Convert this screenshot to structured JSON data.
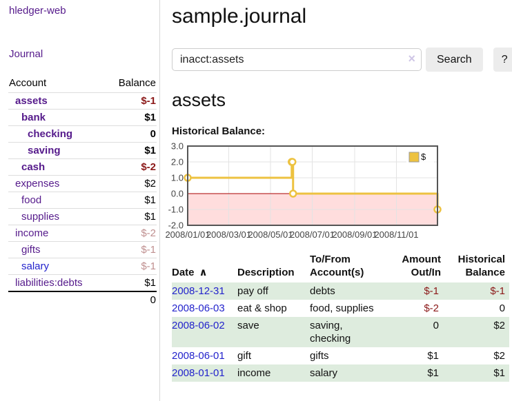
{
  "colors": {
    "link_purple": "#551a8b",
    "link_blue": "#2323cc",
    "negative_strong": "#8b1818",
    "negative_faded": "#bf8f8f",
    "row_green": "#deecde",
    "chart_line": "#edc240",
    "negative_region": "#ffdddd",
    "zero_line": "#aa0000",
    "chart_border": "#545454"
  },
  "sidebar": {
    "brand": "hledger-web",
    "nav": {
      "journal_label": "Journal"
    },
    "accounts": {
      "header": {
        "account": "Account",
        "balance": "Balance"
      },
      "rows": [
        {
          "account": "assets",
          "indent": 1,
          "bold": true,
          "link_tone": "purple",
          "balance": "$-1",
          "balance_tone": "neg"
        },
        {
          "account": "bank",
          "indent": 2,
          "bold": true,
          "link_tone": "purple",
          "balance": "$1",
          "balance_tone": "plain"
        },
        {
          "account": "checking",
          "indent": 3,
          "bold": true,
          "link_tone": "purple",
          "balance": "0",
          "balance_tone": "plain"
        },
        {
          "account": "saving",
          "indent": 3,
          "bold": true,
          "link_tone": "purple",
          "balance": "$1",
          "balance_tone": "plain"
        },
        {
          "account": "cash",
          "indent": 2,
          "bold": true,
          "link_tone": "purple",
          "balance": "$-2",
          "balance_tone": "neg"
        },
        {
          "account": "expenses",
          "indent": 1,
          "bold": false,
          "link_tone": "purple",
          "balance": "$2",
          "balance_tone": "plain"
        },
        {
          "account": "food",
          "indent": 2,
          "bold": false,
          "link_tone": "purple",
          "balance": "$1",
          "balance_tone": "plain"
        },
        {
          "account": "supplies",
          "indent": 2,
          "bold": false,
          "link_tone": "purple",
          "balance": "$1",
          "balance_tone": "plain"
        },
        {
          "account": "income",
          "indent": 1,
          "bold": false,
          "link_tone": "purple",
          "balance": "$-2",
          "balance_tone": "faded"
        },
        {
          "account": "gifts",
          "indent": 2,
          "bold": false,
          "link_tone": "purple",
          "balance": "$-1",
          "balance_tone": "faded"
        },
        {
          "account": "salary",
          "indent": 2,
          "bold": false,
          "link_tone": "blue",
          "balance": "$-1",
          "balance_tone": "faded"
        },
        {
          "account": "liabilities:debts",
          "indent": 1,
          "bold": false,
          "link_tone": "purple",
          "balance": "$1",
          "balance_tone": "plain"
        }
      ],
      "total": "0"
    }
  },
  "main": {
    "title": "sample.journal",
    "search": {
      "value": "inacct:assets",
      "clear_icon": "×",
      "button_label": "Search",
      "help_label": "?"
    },
    "account_heading": "assets",
    "chart_label": "Historical Balance:"
  },
  "chart_data": {
    "type": "line",
    "mode": "steps",
    "title": "Historical Balance:",
    "series": [
      {
        "name": "$",
        "color": "#edc240",
        "points": [
          [
            "2008-01-01",
            1.0
          ],
          [
            "2008-06-01",
            2.0
          ],
          [
            "2008-06-02",
            2.0
          ],
          [
            "2008-06-03",
            0.0
          ],
          [
            "2008-12-31",
            -1.0
          ]
        ]
      }
    ],
    "x_range": [
      "2008-01-01",
      "2008-12-31"
    ],
    "x_ticks": [
      "2008/01/01",
      "2008/03/01",
      "2008/05/01",
      "2008/07/01",
      "2008/09/01",
      "2008/11/01"
    ],
    "y_ticks": [
      3.0,
      2.0,
      1.0,
      0.0,
      -1.0,
      -2.0
    ],
    "ylim": [
      -2,
      3
    ],
    "grid": true,
    "legend": {
      "label": "$",
      "position": "top-right"
    },
    "negative_region_color": "#ffdddd",
    "zero_line_color": "#aa0000"
  },
  "register": {
    "headers": {
      "date": "Date",
      "sort_icon": "∧",
      "description": "Description",
      "tofrom": "To/From Account(s)",
      "amount": "Amount Out/In",
      "balance": "Historical Balance"
    },
    "rows": [
      {
        "date": "2008-12-31",
        "description": "pay off",
        "tofrom": "debts",
        "amount": "$-1",
        "amount_tone": "neg",
        "balance": "$-1",
        "balance_tone": "neg",
        "shade": true
      },
      {
        "date": "2008-06-03",
        "description": "eat & shop",
        "tofrom": "food, supplies",
        "amount": "$-2",
        "amount_tone": "neg",
        "balance": "0",
        "balance_tone": "plain",
        "shade": false
      },
      {
        "date": "2008-06-02",
        "description": "save",
        "tofrom": "saving, checking",
        "amount": "0",
        "amount_tone": "plain",
        "balance": "$2",
        "balance_tone": "plain",
        "shade": true
      },
      {
        "date": "2008-06-01",
        "description": "gift",
        "tofrom": "gifts",
        "amount": "$1",
        "amount_tone": "plain",
        "balance": "$2",
        "balance_tone": "plain",
        "shade": false
      },
      {
        "date": "2008-01-01",
        "description": "income",
        "tofrom": "salary",
        "amount": "$1",
        "amount_tone": "plain",
        "balance": "$1",
        "balance_tone": "plain",
        "shade": true
      }
    ]
  }
}
